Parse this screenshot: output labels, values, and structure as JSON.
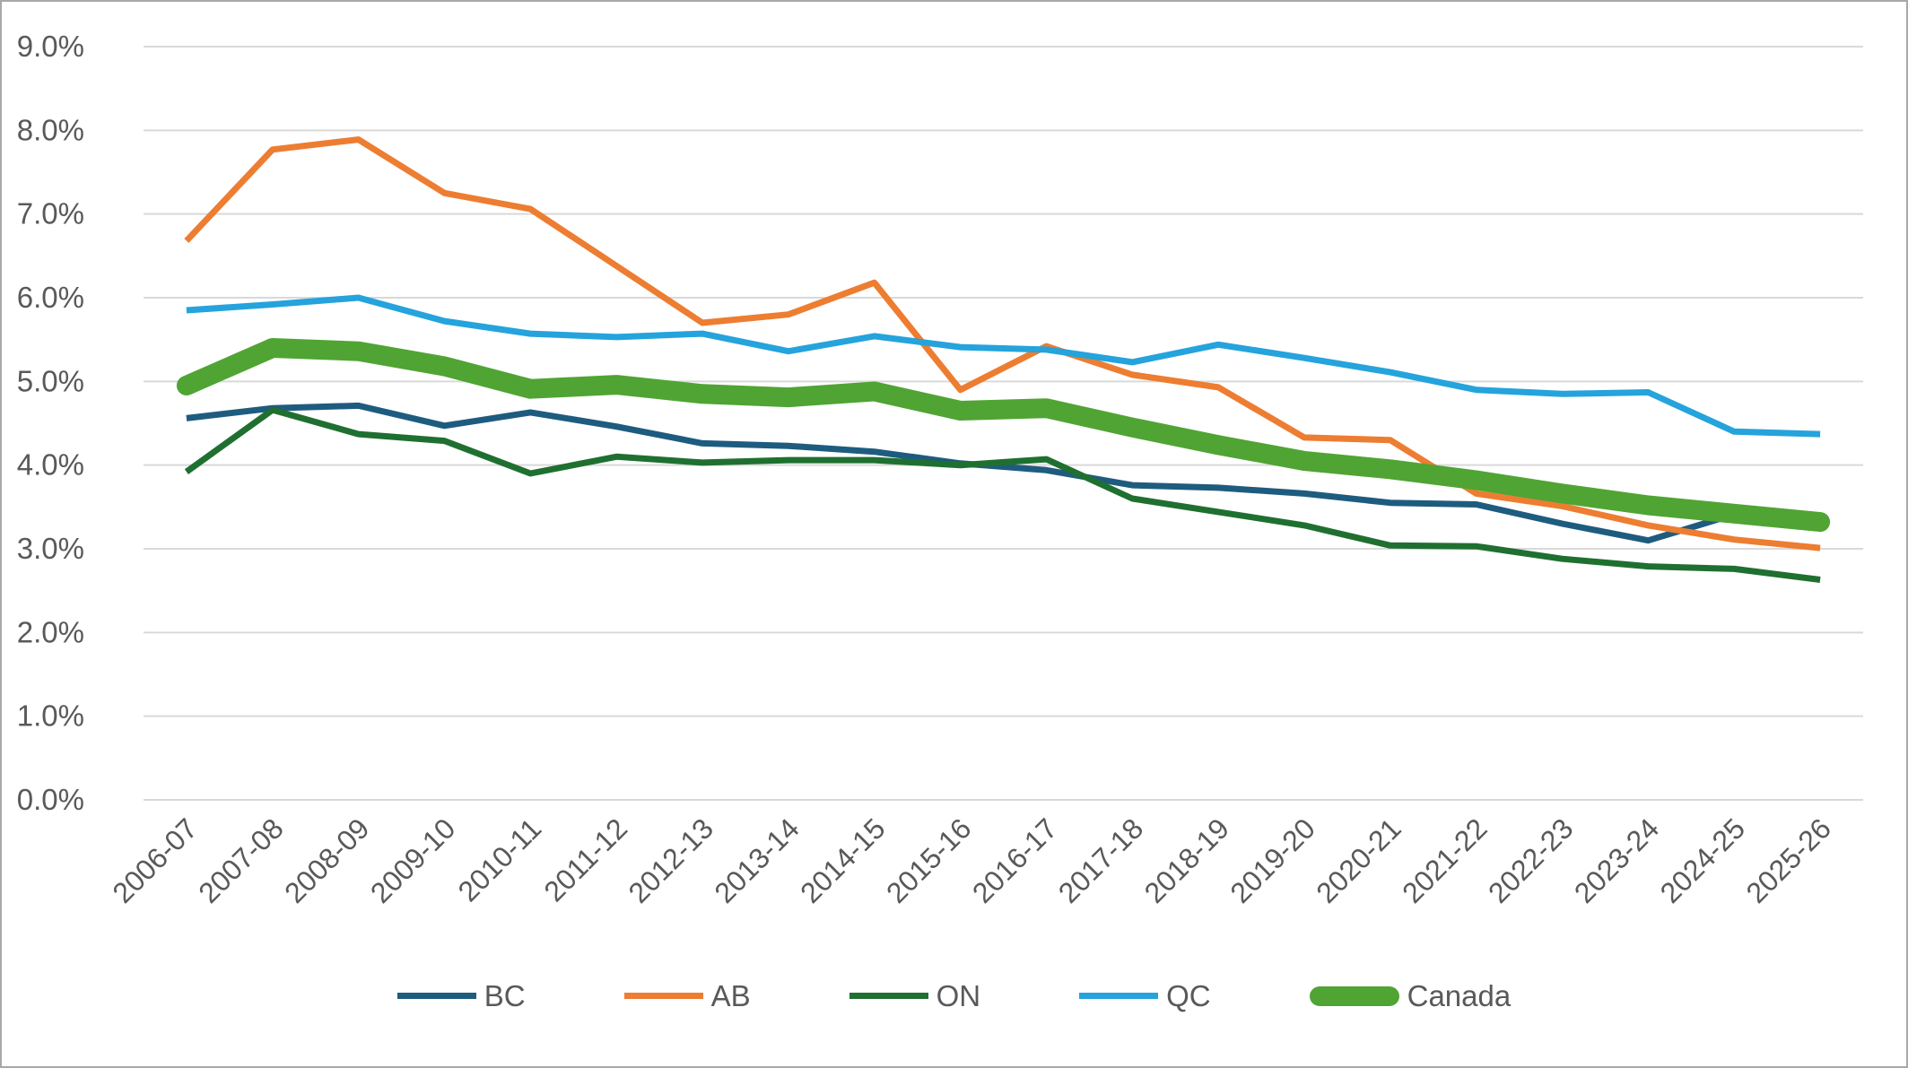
{
  "chart_data": {
    "type": "line",
    "title": "",
    "xlabel": "",
    "ylabel": "",
    "grid": true,
    "legend_position": "bottom",
    "background": "#ffffff",
    "gridline_color": "#d9d9d9",
    "axis_text_color": "#595959",
    "categories": [
      "2006-07",
      "2007-08",
      "2008-09",
      "2009-10",
      "2010-11",
      "2011-12",
      "2012-13",
      "2013-14",
      "2014-15",
      "2015-16",
      "2016-17",
      "2017-18",
      "2018-19",
      "2019-20",
      "2020-21",
      "2021-22",
      "2022-23",
      "2023-24",
      "2024-25",
      "2025-26"
    ],
    "y_axis": {
      "min": 0,
      "max": 9,
      "step": 1,
      "tick_labels": [
        "0.0%",
        "1.0%",
        "2.0%",
        "3.0%",
        "4.0%",
        "5.0%",
        "6.0%",
        "7.0%",
        "8.0%",
        "9.0%"
      ]
    },
    "series": [
      {
        "name": "BC",
        "color": "#1E5C7F",
        "thick": false,
        "values": [
          4.56,
          4.68,
          4.71,
          4.47,
          4.63,
          4.46,
          4.26,
          4.23,
          4.16,
          4.02,
          3.94,
          3.76,
          3.73,
          3.66,
          3.55,
          3.53,
          3.3,
          3.1,
          3.41,
          3.35
        ]
      },
      {
        "name": "AB",
        "color": "#ED7D31",
        "thick": false,
        "values": [
          6.68,
          7.77,
          7.89,
          7.25,
          7.06,
          6.38,
          5.7,
          5.8,
          6.18,
          4.9,
          5.42,
          5.08,
          4.93,
          4.33,
          4.3,
          3.66,
          3.51,
          3.28,
          3.11,
          3.01
        ]
      },
      {
        "name": "ON",
        "color": "#1F7030",
        "thick": false,
        "values": [
          3.92,
          4.66,
          4.37,
          4.29,
          3.9,
          4.1,
          4.03,
          4.06,
          4.06,
          4.0,
          4.07,
          3.6,
          3.44,
          3.28,
          3.04,
          3.03,
          2.88,
          2.79,
          2.76,
          2.63
        ]
      },
      {
        "name": "QC",
        "color": "#25A3DC",
        "thick": false,
        "values": [
          5.85,
          5.92,
          6.0,
          5.72,
          5.57,
          5.53,
          5.57,
          5.36,
          5.54,
          5.41,
          5.38,
          5.23,
          5.44,
          5.28,
          5.11,
          4.9,
          4.85,
          4.87,
          4.4,
          4.37
        ]
      },
      {
        "name": "Canada",
        "color": "#50A433",
        "thick": true,
        "values": [
          4.95,
          5.4,
          5.36,
          5.18,
          4.91,
          4.96,
          4.85,
          4.81,
          4.88,
          4.65,
          4.68,
          4.45,
          4.24,
          4.05,
          3.95,
          3.82,
          3.66,
          3.52,
          3.42,
          3.32
        ]
      }
    ]
  }
}
